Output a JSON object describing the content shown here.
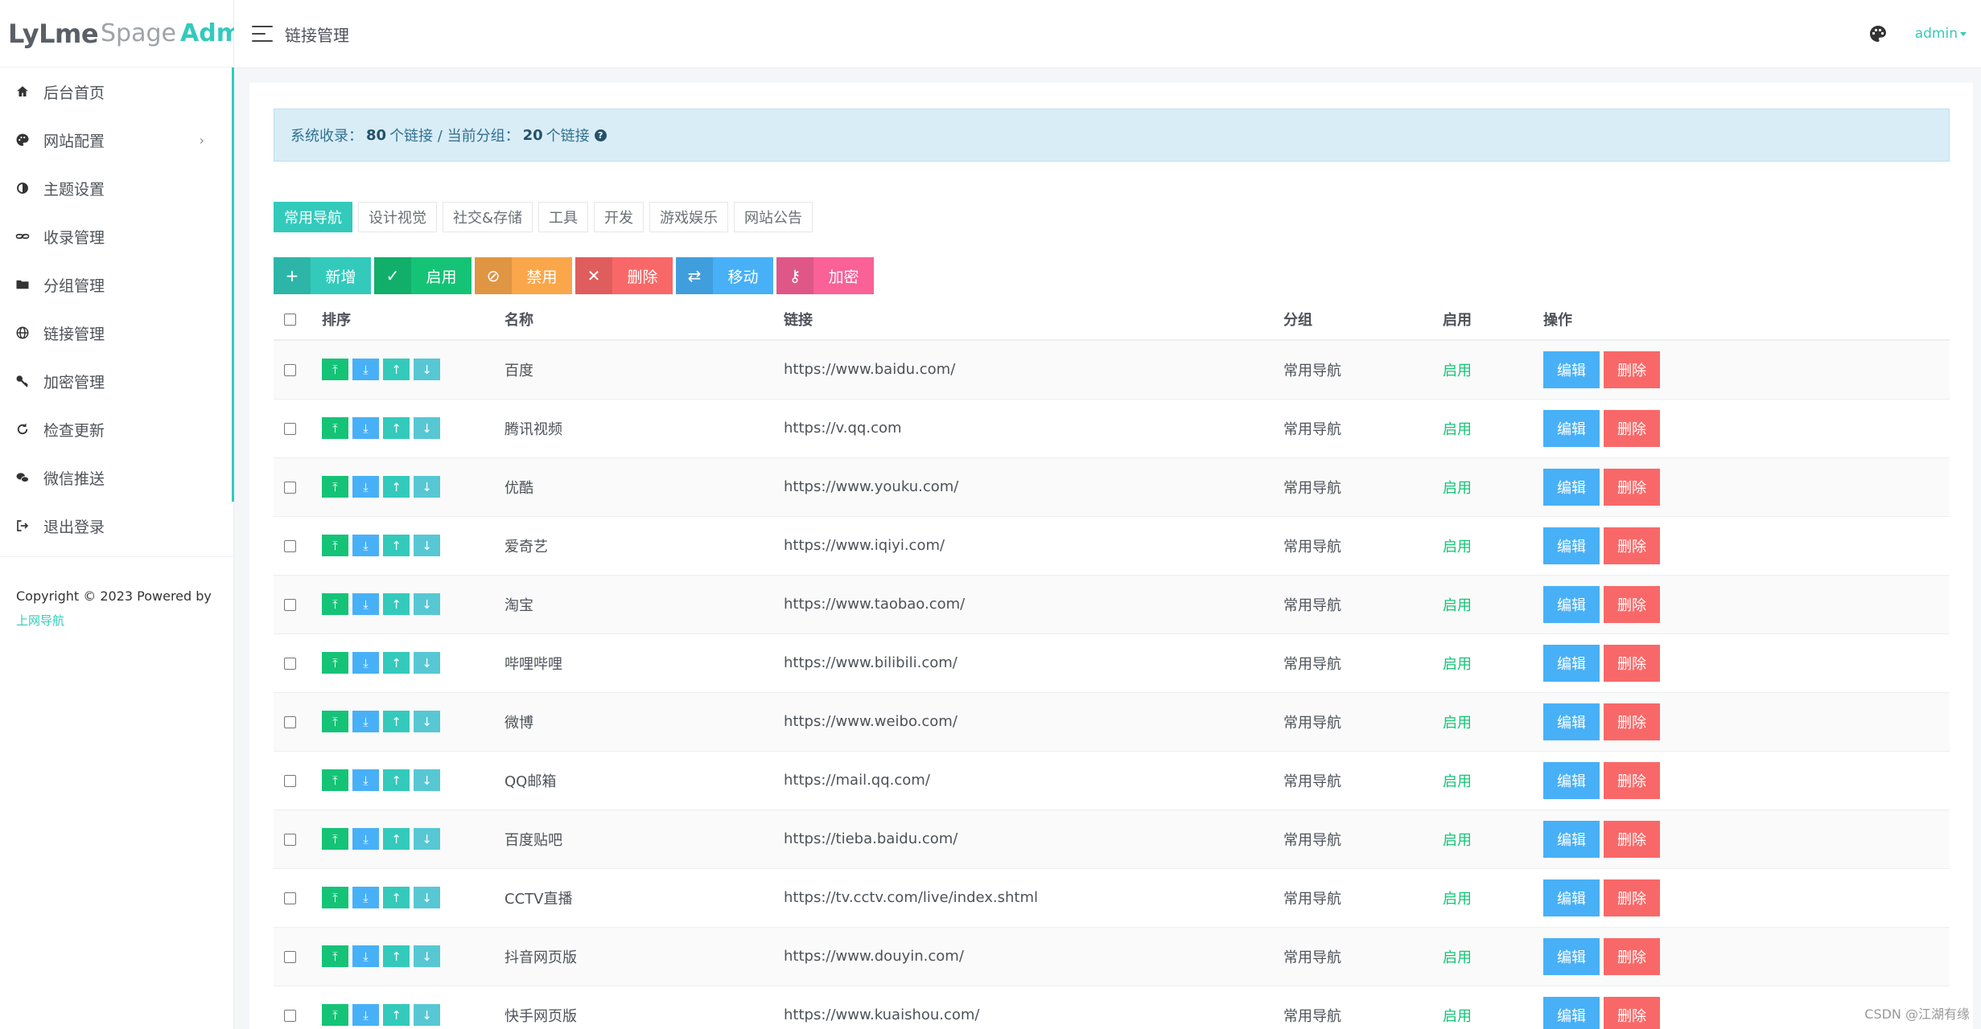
{
  "brand": {
    "part1": "LyLme",
    "part2": "Spage",
    "part3": "Admin"
  },
  "sidebar": {
    "items": [
      {
        "label": "后台首页",
        "icon": "home-icon"
      },
      {
        "label": "网站配置",
        "icon": "palette-icon",
        "arrow": "›"
      },
      {
        "label": "主题设置",
        "icon": "contrast-icon"
      },
      {
        "label": "收录管理",
        "icon": "link-icon"
      },
      {
        "label": "分组管理",
        "icon": "folder-icon"
      },
      {
        "label": "链接管理",
        "icon": "globe-icon"
      },
      {
        "label": "加密管理",
        "icon": "key-icon"
      },
      {
        "label": "检查更新",
        "icon": "refresh-icon"
      },
      {
        "label": "微信推送",
        "icon": "wechat-icon"
      },
      {
        "label": "退出登录",
        "icon": "logout-icon"
      }
    ],
    "copyright": "Copyright © 2023 Powered by",
    "copyright_link": "上网导航"
  },
  "header": {
    "title": "链接管理",
    "user": "admin"
  },
  "alert": {
    "prefix": "系统收录：",
    "total": "80",
    "mid": "个链接 / 当前分组：",
    "group_count": "20",
    "suffix": "个链接"
  },
  "tabs": [
    "常用导航",
    "设计视觉",
    "社交&存储",
    "工具",
    "开发",
    "游戏娱乐",
    "网站公告"
  ],
  "toolbar": {
    "add": "新增",
    "enable": "启用",
    "disable": "禁用",
    "delete": "删除",
    "move": "移动",
    "encrypt": "加密"
  },
  "table": {
    "headers": {
      "sort": "排序",
      "name": "名称",
      "link": "链接",
      "group": "分组",
      "enabled": "启用",
      "actions": "操作"
    },
    "edit_label": "编辑",
    "delete_label": "删除",
    "rows": [
      {
        "name": "百度",
        "url": "https://www.baidu.com/",
        "group": "常用导航",
        "status": "启用"
      },
      {
        "name": "腾讯视频",
        "url": "https://v.qq.com",
        "group": "常用导航",
        "status": "启用"
      },
      {
        "name": "优酷",
        "url": "https://www.youku.com/",
        "group": "常用导航",
        "status": "启用"
      },
      {
        "name": "爱奇艺",
        "url": "https://www.iqiyi.com/",
        "group": "常用导航",
        "status": "启用"
      },
      {
        "name": "淘宝",
        "url": "https://www.taobao.com/",
        "group": "常用导航",
        "status": "启用"
      },
      {
        "name": "哔哩哔哩",
        "url": "https://www.bilibili.com/",
        "group": "常用导航",
        "status": "启用"
      },
      {
        "name": "微博",
        "url": "https://www.weibo.com/",
        "group": "常用导航",
        "status": "启用"
      },
      {
        "name": "QQ邮箱",
        "url": "https://mail.qq.com/",
        "group": "常用导航",
        "status": "启用"
      },
      {
        "name": "百度贴吧",
        "url": "https://tieba.baidu.com/",
        "group": "常用导航",
        "status": "启用"
      },
      {
        "name": "CCTV直播",
        "url": "https://tv.cctv.com/live/index.shtml",
        "group": "常用导航",
        "status": "启用"
      },
      {
        "name": "抖音网页版",
        "url": "https://www.douyin.com/",
        "group": "常用导航",
        "status": "启用"
      },
      {
        "name": "快手网页版",
        "url": "https://www.kuaishou.com/",
        "group": "常用导航",
        "status": "启用"
      }
    ]
  },
  "watermark": "CSDN @江湖有缘"
}
